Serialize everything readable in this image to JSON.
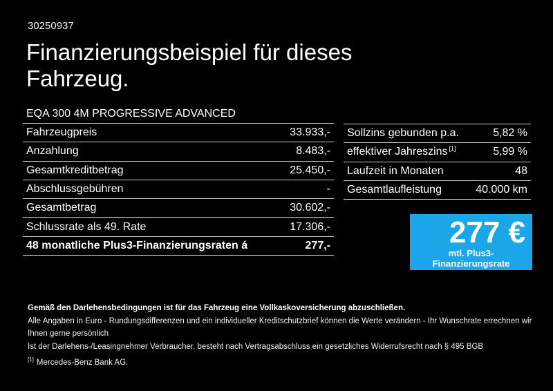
{
  "page": {
    "background": "#000000",
    "accent_blue": "#1AA6E9",
    "document_id": "30250937",
    "title_lines": [
      "Finanzierungsbeispiel für dieses",
      "Fahrzeug."
    ],
    "vehicle_model": "EQA 300 4M PROGRESSIVE ADVANCED"
  },
  "finance_table": {
    "rows": [
      {
        "label": "Fahrzeugpreis",
        "value": "33.933,-"
      },
      {
        "label": "Anzahlung",
        "value": "8.483,-"
      },
      {
        "label": "Gesamtkreditbetrag",
        "value": "25.450,-"
      },
      {
        "label": "Abschlussgebühren",
        "value": "-"
      },
      {
        "label": "Gesamtbetrag",
        "value": "30.602,-"
      },
      {
        "label": "Schlussrate als 49. Rate",
        "value": "17.306,-"
      },
      {
        "label": "48 monatliche Plus3-Finanzierungsraten á",
        "value": "277,-"
      }
    ]
  },
  "conditions_table": {
    "rows": [
      {
        "label": "Sollzins gebunden p.a.",
        "value": "5,82 %"
      },
      {
        "label": "effektiver Jahreszins",
        "label_superscript": "[1]",
        "value": "5,99 %"
      },
      {
        "label": "Laufzeit in Monaten",
        "value": "48"
      },
      {
        "label": "Gesamtlaufleistung",
        "value": "40.000 km"
      }
    ]
  },
  "rate_box": {
    "amount": "277 €",
    "caption": "mtl. Plus3-Finanzierungsrate",
    "background": "#1AA6E9"
  },
  "footnotes": {
    "insurance_note": "Gemäß den Darlehensbedingungen ist für das Fahrzeug eine Vollkaskoversicherung abzuschließen.",
    "note_line2": "Alle Angaben in Euro - Rundungsdifferenzen und ein individueller Kreditschutzbrief können die Werte verändern - Ihr Wunschrate errechnen wir Ihnen gerne persönlich",
    "note_line3": "Ist der Darlehens-/Leasingnehmer Verbraucher, besteht nach Vertragsabschluss ein gesetzliches Widerrufsrecht nach § 495 BGB",
    "reference_marker": "[1]",
    "reference_text": "Mercedes-Benz Bank AG."
  }
}
